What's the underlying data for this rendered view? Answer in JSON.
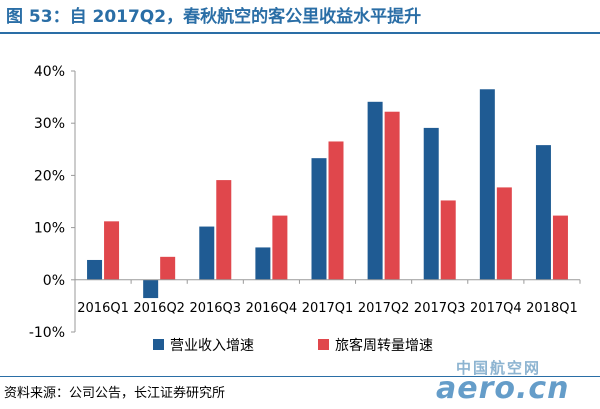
{
  "page": {
    "title": "图 53：自 2017Q2，春秋航空的客公里收益水平提升",
    "source": "资料来源：公司公告，长江证券研究所",
    "watermark_cn": "中国航空网",
    "watermark_en": "aero.cn",
    "colors": {
      "title": "#2a6ea6",
      "series_revenue": "#1f5b93",
      "series_rpk": "#e0474c"
    }
  },
  "chart_data": {
    "type": "bar",
    "title": "",
    "xlabel": "",
    "ylabel": "",
    "categories": [
      "2016Q1",
      "2016Q2",
      "2016Q3",
      "2016Q4",
      "2017Q1",
      "2017Q2",
      "2017Q3",
      "2017Q4",
      "2018Q1"
    ],
    "series": [
      {
        "name": "营业收入增速",
        "color": "#1f5b93",
        "values": [
          3.8,
          -3.5,
          10.2,
          6.2,
          23.3,
          34.1,
          29.1,
          36.5,
          25.8
        ]
      },
      {
        "name": "旅客周转量增速",
        "color": "#e0474c",
        "values": [
          11.2,
          4.4,
          19.1,
          12.3,
          26.5,
          32.2,
          15.2,
          17.7,
          12.3
        ]
      }
    ],
    "ylim": [
      -10,
      40
    ],
    "yticks": [
      "-10%",
      "0%",
      "10%",
      "20%",
      "30%",
      "40%"
    ],
    "ytick_values": [
      -10,
      0,
      10,
      20,
      30,
      40
    ],
    "grid": false,
    "legend_position": "bottom-center"
  }
}
